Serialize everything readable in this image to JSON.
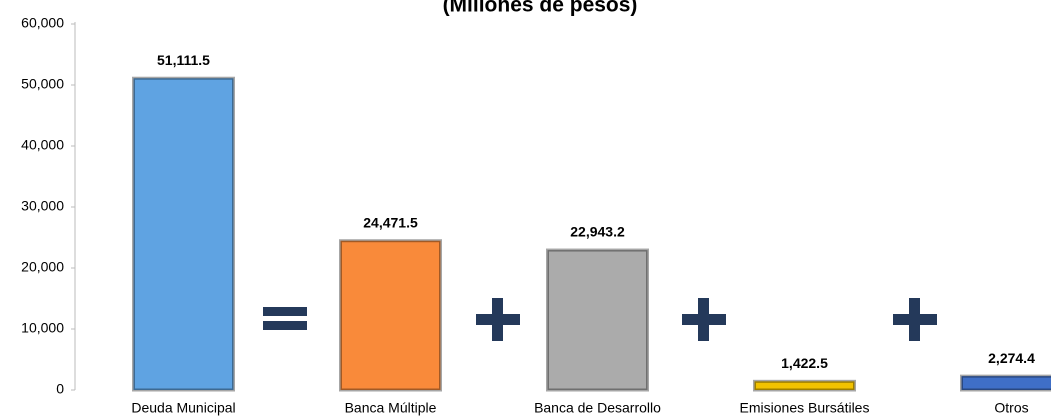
{
  "chart_data": {
    "type": "bar",
    "title": "(Millones de pesos)",
    "categories": [
      "Deuda Municipal",
      "Banca Múltiple",
      "Banca de Desarrollo",
      "Emisiones Bursátiles",
      "Otros"
    ],
    "values": [
      51111.5,
      24471.5,
      22943.2,
      1422.5,
      2274.4
    ],
    "value_labels": [
      "51,111.5",
      "24,471.5",
      "22,943.2",
      "1,422.5",
      "2,274.4"
    ],
    "colors": [
      "#5fa3e2",
      "#f98a3a",
      "#ababab",
      "#f2c200",
      "#3f6fc7"
    ],
    "ylim": [
      0,
      60000
    ],
    "yticks": [
      0,
      {
        "value": 10000,
        "label": "10,000"
      },
      {
        "value": 20000,
        "label": "20,000"
      },
      {
        "value": 30000,
        "label": "30,000"
      },
      {
        "value": 40000,
        "label": "40,000"
      },
      {
        "value": 50000,
        "label": "50,000"
      },
      {
        "value": 60000,
        "label": "60,000"
      }
    ],
    "grid": false
  }
}
